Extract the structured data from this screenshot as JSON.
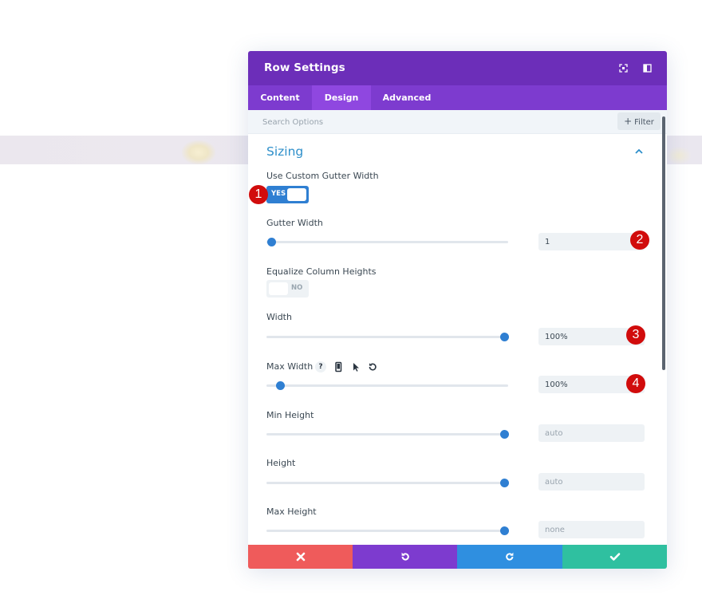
{
  "modal": {
    "title": "Row Settings",
    "header_icons": [
      "fullscreen-icon",
      "sidebar-layout-icon"
    ],
    "colors": {
      "header": "#6c2eb9",
      "tabs": "#7d3bcf",
      "active_tab": "#8f47e0",
      "accent_blue": "#2e8fca",
      "toggle_on": "#2f7fd2",
      "badge": "#d10c0c"
    }
  },
  "tabs": [
    {
      "label": "Content",
      "active": false
    },
    {
      "label": "Design",
      "active": true
    },
    {
      "label": "Advanced",
      "active": false
    }
  ],
  "search": {
    "placeholder": "Search Options",
    "filter_label": "Filter"
  },
  "section": {
    "title": "Sizing",
    "expanded": true
  },
  "settings": {
    "custom_gutter": {
      "label": "Use Custom Gutter Width",
      "value": "YES",
      "on": true
    },
    "gutter_width": {
      "label": "Gutter Width",
      "value": "1",
      "slider_fraction": 0.0
    },
    "equalize": {
      "label": "Equalize Column Heights",
      "value": "NO",
      "on": false
    },
    "width": {
      "label": "Width",
      "value": "100%",
      "slider_fraction": 1.0
    },
    "max_width": {
      "label": "Max Width",
      "value": "100%",
      "slider_fraction": 0.05,
      "icons": [
        "help-icon",
        "mobile-icon",
        "cursor-icon",
        "reset-icon"
      ],
      "help_glyph": "?"
    },
    "min_height": {
      "label": "Min Height",
      "value": "auto",
      "slider_fraction": 1.0
    },
    "height": {
      "label": "Height",
      "value": "auto",
      "slider_fraction": 1.0
    },
    "max_height": {
      "label": "Max Height",
      "value": "none",
      "slider_fraction": 1.0
    }
  },
  "annotations": [
    "1",
    "2",
    "3",
    "4"
  ],
  "footer": {
    "buttons": [
      {
        "name": "discard",
        "icon": "close-icon",
        "color": "#ef5b5b"
      },
      {
        "name": "undo",
        "icon": "undo-icon",
        "color": "#7d3bcf"
      },
      {
        "name": "redo",
        "icon": "redo-icon",
        "color": "#2f8fe0"
      },
      {
        "name": "save",
        "icon": "check-icon",
        "color": "#2fc0a0"
      }
    ]
  }
}
